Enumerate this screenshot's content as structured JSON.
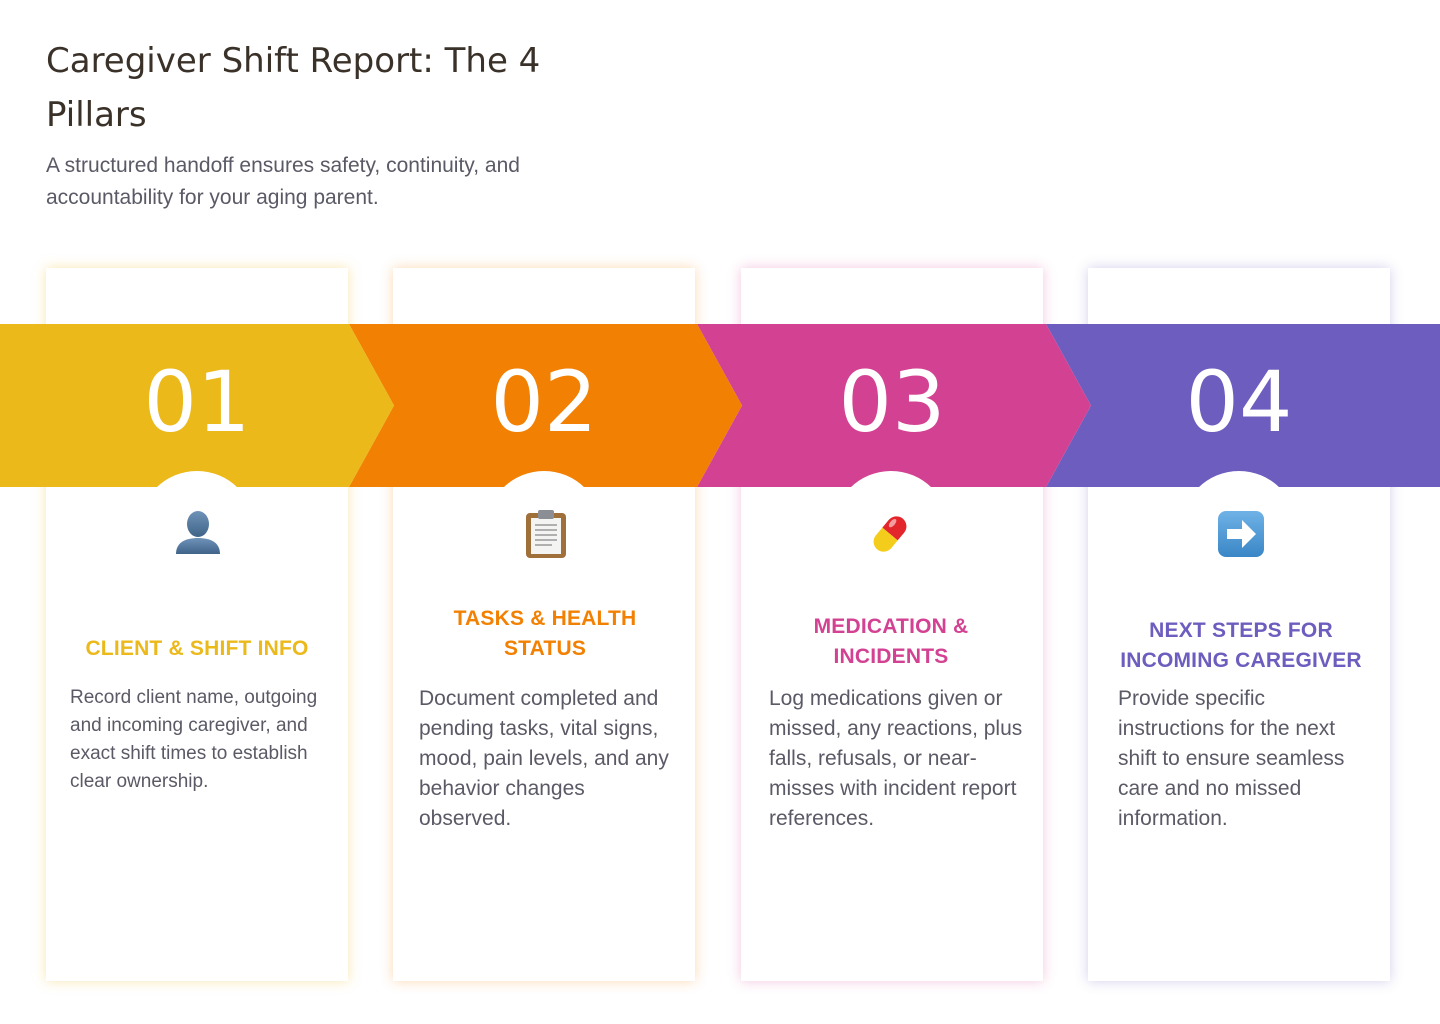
{
  "header": {
    "title": "Caregiver Shift Report: The 4 Pillars",
    "subtitle": "A structured handoff ensures safety, continuity, and accountability for your aging parent."
  },
  "colors": {
    "pillar_1": "#ecb91b",
    "pillar_2": "#f28002",
    "pillar_3": "#d34292",
    "pillar_4": "#6c5dbe"
  },
  "pillars": [
    {
      "number": "01",
      "icon": "person-silhouette-icon",
      "heading": "CLIENT & SHIFT INFO",
      "description": "Record client name, outgoing and incoming caregiver, and exact shift times to establish clear ownership."
    },
    {
      "number": "02",
      "icon": "clipboard-icon",
      "heading": "TASKS & HEALTH STATUS",
      "description": "Document completed and pending tasks, vital signs, mood, pain levels, and any behavior changes observed."
    },
    {
      "number": "03",
      "icon": "pill-capsule-icon",
      "heading": "MEDICATION & INCIDENTS",
      "description": "Log medications given or missed, any reactions, plus falls, refusals, or near-misses with incident report references."
    },
    {
      "number": "04",
      "icon": "right-arrow-icon",
      "heading": "NEXT STEPS FOR INCOMING CAREGIVER",
      "description": "Provide specific instructions for the next shift to ensure seamless care and no missed information."
    }
  ]
}
